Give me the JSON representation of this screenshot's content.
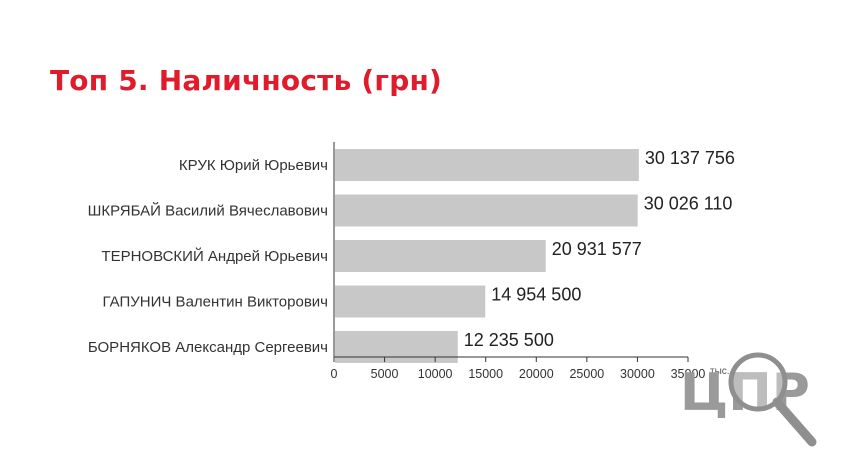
{
  "title": "Топ 5. Наличность (грн)",
  "watermark": {
    "text": "ЦПР",
    "color": "#9a9a9a",
    "icon": "magnifier-icon"
  },
  "colors": {
    "title": "#e01b2b",
    "bar": "#c8c8c8",
    "axis": "#333333"
  },
  "chart_data": {
    "type": "bar",
    "orientation": "horizontal",
    "title": "Топ 5. Наличность (грн)",
    "categories": [
      "КРУК Юрий Юрьевич",
      "ШКРЯБАЙ Василий Вячеславович",
      "ТЕРНОВСКИЙ Андрей Юрьевич",
      "ГАПУНИЧ Валентин Викторович",
      "БОРНЯКОВ Александр Сергеевич"
    ],
    "values": [
      30137756,
      30026110,
      20931577,
      14954500,
      12235500
    ],
    "value_labels": [
      "30 137 756",
      "30 026 110",
      "20 931 577",
      "14 954 500",
      "12 235 500"
    ],
    "xlim": [
      0,
      35000
    ],
    "x_scale_divisor": 1000,
    "x_ticks": [
      0,
      5000,
      10000,
      15000,
      20000,
      25000,
      30000,
      35000
    ],
    "x_tick_labels": [
      "0",
      "5000",
      "10000",
      "15000",
      "20000",
      "25000",
      "30000",
      "35000"
    ],
    "x_unit_label": "тыс.",
    "grid": false,
    "legend": "none"
  }
}
